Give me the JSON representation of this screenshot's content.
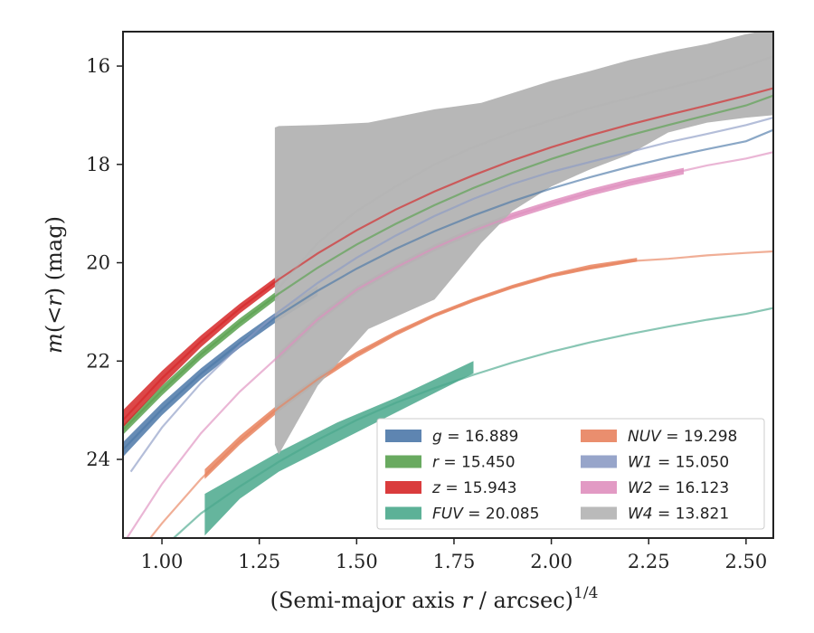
{
  "chart_data": {
    "type": "line",
    "xlabel": "(Semi-major axis r / arcsec)^{1/4}",
    "xlabel_parts": {
      "main": "(Semi-major axis ",
      "var": "r",
      "rest": " / arcsec)",
      "sup": "1/4"
    },
    "ylabel": "m(< r) (mag)",
    "ylabel_parts": {
      "m": "m",
      "open": "(<",
      "r": "r",
      "close": ") (mag)"
    },
    "xlim": [
      0.9,
      2.57
    ],
    "ylim": [
      25.6,
      15.3
    ],
    "y_inverted": true,
    "x_ticks": [
      1.0,
      1.25,
      1.5,
      1.75,
      2.0,
      2.25,
      2.5
    ],
    "x_tick_labels": [
      "1.00",
      "1.25",
      "1.50",
      "1.75",
      "2.00",
      "2.25",
      "2.50"
    ],
    "y_ticks": [
      16,
      18,
      20,
      22,
      24
    ],
    "y_tick_labels": [
      "16",
      "18",
      "20",
      "22",
      "24"
    ],
    "legend_position": "lower-right",
    "series": [
      {
        "name": "g",
        "label_value": "16.889",
        "italic_name": true,
        "color": "#4c78a8",
        "x": [
          0.9,
          1.0,
          1.1,
          1.2,
          1.3,
          1.4,
          1.5,
          1.6,
          1.7,
          1.8,
          1.9,
          2.0,
          2.1,
          2.2,
          2.3,
          2.4,
          2.5,
          2.57
        ],
        "y": [
          23.8,
          22.98,
          22.26,
          21.63,
          21.07,
          20.57,
          20.12,
          19.72,
          19.36,
          19.04,
          18.75,
          18.49,
          18.26,
          18.05,
          17.86,
          17.69,
          17.53,
          17.3
        ],
        "band_lo": [
          23.65,
          22.85,
          22.15,
          21.53,
          20.97,
          20.47
        ],
        "band_hi": [
          23.95,
          23.1,
          22.37,
          21.73,
          21.17,
          20.67
        ],
        "band_x": [
          0.9,
          1.0,
          1.1,
          1.2,
          1.3,
          1.4
        ]
      },
      {
        "name": "r",
        "label_value": "15.450",
        "italic_name": true,
        "color": "#59a14f",
        "x": [
          0.9,
          1.0,
          1.1,
          1.2,
          1.3,
          1.4,
          1.5,
          1.6,
          1.7,
          1.8,
          1.9,
          2.0,
          2.1,
          2.2,
          2.3,
          2.4,
          2.5,
          2.57
        ],
        "y": [
          23.4,
          22.6,
          21.87,
          21.22,
          20.63,
          20.1,
          19.63,
          19.21,
          18.83,
          18.48,
          18.17,
          17.89,
          17.64,
          17.41,
          17.2,
          17.0,
          16.8,
          16.6
        ],
        "band_lo": [
          23.3,
          22.5,
          21.78,
          21.13,
          20.55
        ],
        "band_hi": [
          23.5,
          22.7,
          21.96,
          21.31,
          20.71
        ],
        "band_x": [
          0.9,
          1.0,
          1.1,
          1.2,
          1.3
        ]
      },
      {
        "name": "z",
        "label_value": "15.943",
        "italic_name": true,
        "color": "#d62728",
        "x": [
          0.9,
          1.0,
          1.1,
          1.2,
          1.3,
          1.4,
          1.5,
          1.6,
          1.7,
          1.8,
          1.9,
          2.0,
          2.1,
          2.2,
          2.3,
          2.4,
          2.5,
          2.57
        ],
        "y": [
          23.2,
          22.35,
          21.6,
          20.93,
          20.34,
          19.81,
          19.34,
          18.92,
          18.55,
          18.22,
          17.92,
          17.65,
          17.41,
          17.19,
          16.99,
          16.8,
          16.6,
          16.45
        ],
        "band_lo": [
          23.0,
          22.2,
          21.48,
          20.83,
          20.25
        ],
        "band_hi": [
          23.35,
          22.5,
          21.72,
          21.03,
          20.43
        ],
        "band_x": [
          0.9,
          1.0,
          1.1,
          1.2,
          1.3
        ]
      },
      {
        "name": "FUV",
        "label_value": "20.085",
        "italic_name": true,
        "color": "#4aa88c",
        "x": [
          1.03,
          1.1,
          1.2,
          1.3,
          1.4,
          1.5,
          1.6,
          1.7,
          1.8,
          1.9,
          2.0,
          2.1,
          2.2,
          2.3,
          2.4,
          2.5,
          2.57
        ],
        "y": [
          25.6,
          25.1,
          24.55,
          24.05,
          23.6,
          23.2,
          22.85,
          22.55,
          22.28,
          22.03,
          21.81,
          21.62,
          21.45,
          21.3,
          21.16,
          21.04,
          20.92
        ],
        "band_x": [
          1.11,
          1.2,
          1.3,
          1.45,
          1.6,
          1.8
        ],
        "band_lo": [
          24.7,
          24.3,
          23.85,
          23.25,
          22.75,
          22.0
        ],
        "band_hi": [
          25.55,
          24.8,
          24.25,
          23.65,
          23.05,
          22.25
        ]
      },
      {
        "name": "NUV",
        "label_value": "19.298",
        "italic_name": true,
        "color": "#e8825e",
        "x": [
          0.97,
          1.0,
          1.1,
          1.2,
          1.3,
          1.4,
          1.5,
          1.6,
          1.7,
          1.8,
          1.9,
          2.0,
          2.1,
          2.2,
          2.3,
          2.4,
          2.5,
          2.57
        ],
        "y": [
          25.6,
          25.3,
          24.4,
          23.62,
          22.95,
          22.37,
          21.87,
          21.44,
          21.07,
          20.76,
          20.49,
          20.26,
          20.1,
          19.97,
          19.92,
          19.85,
          19.8,
          19.77
        ],
        "band_x": [
          1.11,
          1.2,
          1.3,
          1.4,
          1.5,
          1.6,
          1.7,
          1.8,
          1.9,
          2.0,
          2.1,
          2.22
        ],
        "band_lo": [
          24.2,
          23.52,
          22.87,
          22.3,
          21.81,
          21.39,
          21.03,
          20.72,
          20.45,
          20.22,
          20.04,
          19.9
        ],
        "band_hi": [
          24.4,
          23.7,
          23.03,
          22.44,
          21.93,
          21.49,
          21.11,
          20.8,
          20.53,
          20.3,
          20.14,
          19.98
        ]
      },
      {
        "name": "W1",
        "label_value": "15.050",
        "italic_name": true,
        "color": "#8c9bc4",
        "x": [
          0.92,
          1.0,
          1.1,
          1.2,
          1.3,
          1.4,
          1.5,
          1.6,
          1.7,
          1.8,
          1.9,
          2.0,
          2.1,
          2.2,
          2.3,
          2.4,
          2.5,
          2.57
        ],
        "y": [
          24.25,
          23.35,
          22.45,
          21.68,
          21.0,
          20.41,
          19.9,
          19.45,
          19.05,
          18.7,
          18.4,
          18.15,
          17.95,
          17.75,
          17.55,
          17.38,
          17.2,
          17.05
        ],
        "band_x": [],
        "band_lo": [],
        "band_hi": []
      },
      {
        "name": "W2",
        "label_value": "16.123",
        "italic_name": true,
        "color": "#df8fbe",
        "x": [
          0.91,
          1.0,
          1.1,
          1.2,
          1.3,
          1.4,
          1.5,
          1.6,
          1.7,
          1.8,
          1.9,
          2.0,
          2.1,
          2.2,
          2.3,
          2.4,
          2.5,
          2.57
        ],
        "y": [
          25.6,
          24.5,
          23.47,
          22.62,
          21.9,
          21.15,
          20.55,
          20.1,
          19.7,
          19.35,
          19.05,
          18.8,
          18.57,
          18.37,
          18.2,
          18.02,
          17.88,
          17.75
        ],
        "band_x": [
          1.3,
          1.4,
          1.5,
          1.6,
          1.7,
          1.8,
          1.9,
          2.0,
          2.1,
          2.2,
          2.34
        ],
        "band_lo": [
          21.82,
          21.07,
          20.48,
          20.03,
          19.63,
          19.28,
          18.98,
          18.73,
          18.5,
          18.3,
          18.07
        ],
        "band_hi": [
          21.98,
          21.23,
          20.62,
          20.17,
          19.77,
          19.42,
          19.12,
          18.87,
          18.64,
          18.44,
          18.2
        ]
      },
      {
        "name": "W4",
        "label_value": "13.821",
        "italic_name": true,
        "color": "#b3b3b3",
        "x": [
          1.29,
          1.4,
          1.5,
          1.6,
          1.7,
          1.8,
          1.9,
          2.0,
          2.1,
          2.2,
          2.3,
          2.4,
          2.5,
          2.57
        ],
        "y": [
          20.6,
          19.6,
          18.95,
          18.45,
          18.0,
          17.65,
          17.35,
          17.1,
          16.85,
          16.65,
          16.45,
          16.25,
          16.0,
          15.8
        ],
        "band_x": [
          1.29,
          1.3,
          1.4,
          1.53,
          1.7,
          1.82,
          1.9,
          2.0,
          2.1,
          2.2,
          2.3,
          2.4,
          2.5,
          2.57
        ],
        "band_lo": [
          23.7,
          23.9,
          22.5,
          21.35,
          20.75,
          19.6,
          18.95,
          18.45,
          18.1,
          17.8,
          17.35,
          17.15,
          17.05,
          17.0
        ],
        "band_hi": [
          17.25,
          17.22,
          17.2,
          17.15,
          16.88,
          16.75,
          16.55,
          16.3,
          16.1,
          15.88,
          15.7,
          15.55,
          15.35,
          15.25
        ]
      }
    ]
  }
}
